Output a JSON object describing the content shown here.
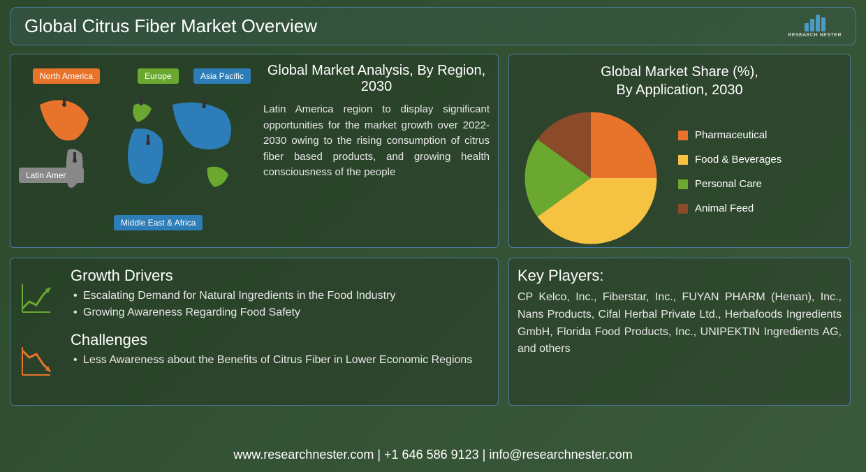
{
  "title": "Global Citrus Fiber Market Overview",
  "logo_text": "RESEARCH NESTER",
  "map_panel": {
    "title": "Global Market Analysis, By Region, 2030",
    "description": "Latin America region to display significant opportunities for the market growth over 2022-2030 owing to the rising consumption of citrus fiber based products, and growing health consciousness of the people",
    "regions": [
      {
        "name": "North America",
        "color": "#e8742c"
      },
      {
        "name": "Europe",
        "color": "#6ba82f"
      },
      {
        "name": "Asia Pacific",
        "color": "#2d7db8"
      },
      {
        "name": "Latin America",
        "color": "#888888"
      },
      {
        "name": "Middle East & Africa",
        "color": "#2d7db8"
      }
    ]
  },
  "pie_panel": {
    "title_line1": "Global Market Share (%),",
    "title_line2": "By Application, 2030",
    "slices": [
      {
        "label": "Pharmaceutical",
        "value": 25,
        "color": "#e8742c"
      },
      {
        "label": "Food & Beverages",
        "value": 40,
        "color": "#f5c242"
      },
      {
        "label": "Personal Care",
        "value": 20,
        "color": "#6ba82f"
      },
      {
        "label": "Animal Feed",
        "value": 15,
        "color": "#8b4a2a"
      }
    ],
    "background_color": "transparent",
    "legend_fontsize": 15,
    "title_fontsize": 20,
    "chart_size": 210
  },
  "drivers": {
    "title": "Growth Drivers",
    "items": [
      "Escalating Demand for Natural Ingredients in the Food Industry",
      "Growing Awareness Regarding Food Safety"
    ]
  },
  "challenges": {
    "title": "Challenges",
    "items": [
      "Less Awareness about the Benefits of Citrus Fiber in Lower Economic Regions"
    ]
  },
  "players": {
    "title": "Key Players:",
    "text": "CP Kelco, Inc., Fiberstar, Inc., FUYAN PHARM (Henan), Inc., Nans Products, Cifal Herbal Private Ltd., Herbafoods Ingredients GmbH, Florida Food Products, Inc., UNIPEKTIN Ingredients AG, and others"
  },
  "footer": "www.researchnester.com | +1 646 586 9123 | info@researchnester.com",
  "colors": {
    "panel_border": "#4a7a9a",
    "text_primary": "#ffffff",
    "text_body": "#e8e8e8",
    "bg_dark": "#2d4a2d",
    "up_arrow": "#6ba82f",
    "down_arrow": "#e8742c"
  }
}
